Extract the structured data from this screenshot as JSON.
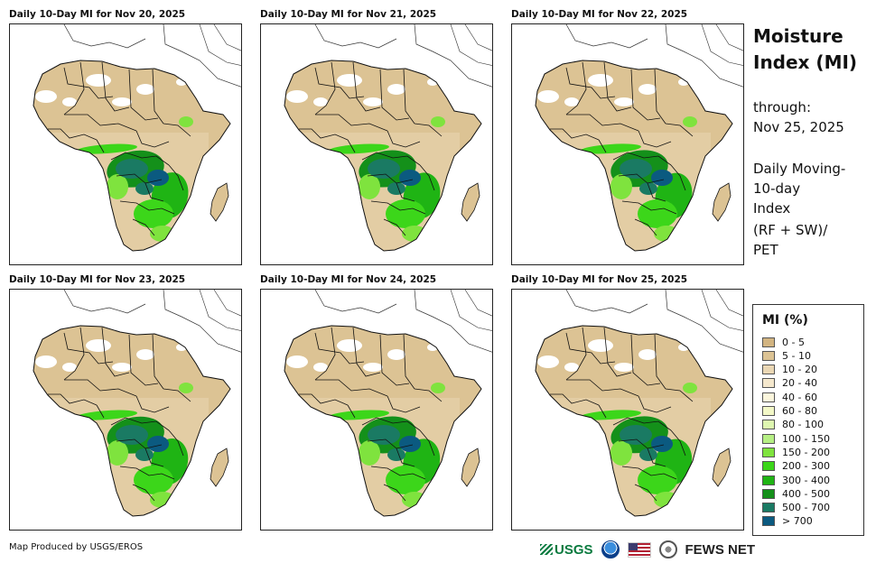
{
  "panels": [
    {
      "title": "Daily 10-Day MI for Nov 20, 2025"
    },
    {
      "title": "Daily 10-Day MI for Nov 21, 2025"
    },
    {
      "title": "Daily 10-Day MI for Nov 22, 2025"
    },
    {
      "title": "Daily 10-Day MI for Nov 23, 2025"
    },
    {
      "title": "Daily 10-Day MI for Nov 24, 2025"
    },
    {
      "title": "Daily 10-Day MI for Nov 25, 2025"
    }
  ],
  "sidebar": {
    "title_line1": "Moisture",
    "title_line2": "Index (MI)",
    "through_label": "through:",
    "through_date": "Nov 25, 2025",
    "desc_line1": "Daily Moving-",
    "desc_line2": "10-day",
    "desc_line3": "Index",
    "formula_line1": "(RF + SW)/",
    "formula_line2": "PET"
  },
  "legend": {
    "title": "MI (%)",
    "items": [
      {
        "label": "0 - 5",
        "color": "#d2b481"
      },
      {
        "label": "5 - 10",
        "color": "#dcc394"
      },
      {
        "label": "10 - 20",
        "color": "#ead7b4"
      },
      {
        "label": "20 - 40",
        "color": "#f5e8cd"
      },
      {
        "label": "40 - 60",
        "color": "#fbf6dc"
      },
      {
        "label": "60 - 80",
        "color": "#f3f8c7"
      },
      {
        "label": "80 - 100",
        "color": "#def7b0"
      },
      {
        "label": "100 - 150",
        "color": "#b6ef84"
      },
      {
        "label": "150 - 200",
        "color": "#7fe33e"
      },
      {
        "label": "200 - 300",
        "color": "#3cd61a"
      },
      {
        "label": "300 - 400",
        "color": "#1fb414"
      },
      {
        "label": "400 - 500",
        "color": "#14901a"
      },
      {
        "label": "500 - 700",
        "color": "#1a7a63"
      },
      {
        "label": "> 700",
        "color": "#0b5a80"
      }
    ]
  },
  "footer": {
    "credit": "Map Produced by USGS/EROS",
    "usgs": "USGS",
    "fews": "FEWS NET"
  }
}
